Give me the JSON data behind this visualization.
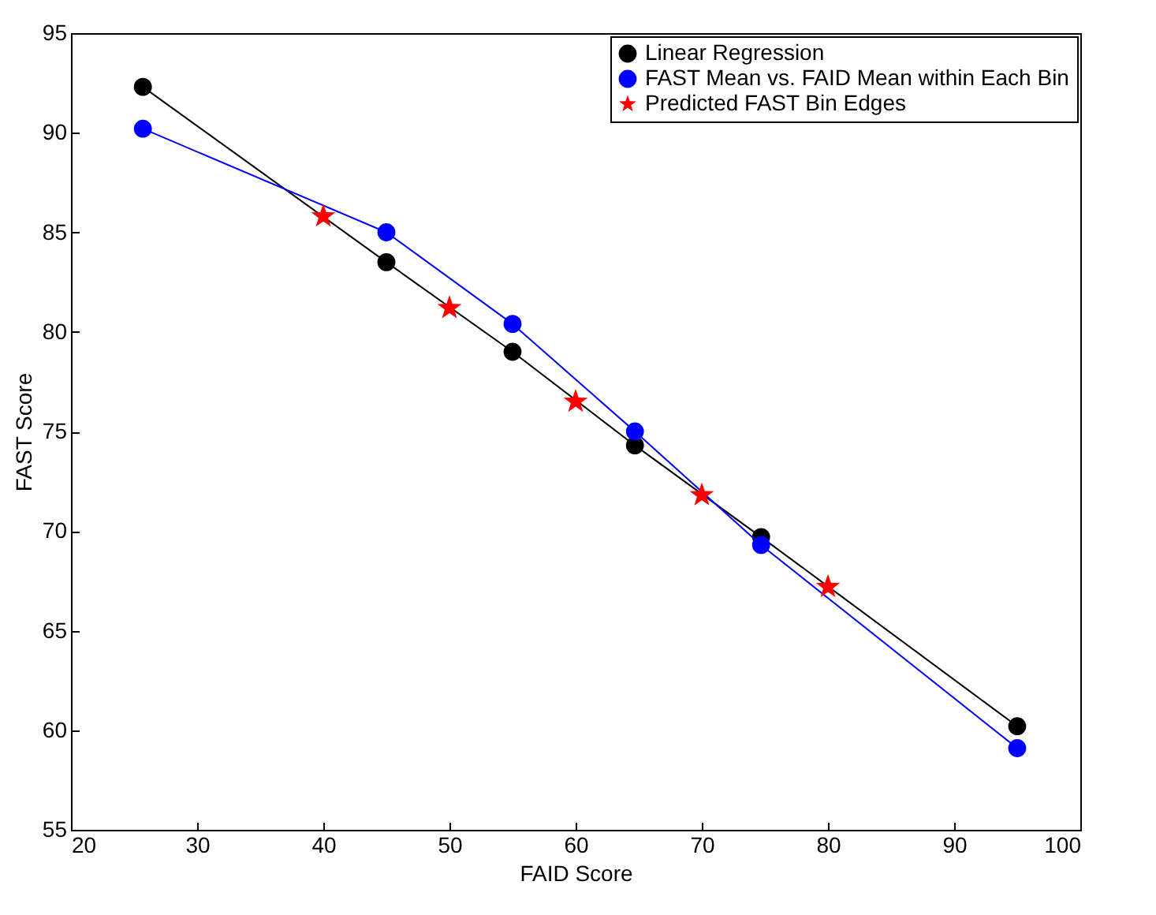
{
  "chart_data": {
    "type": "line",
    "xlabel": "FAID Score",
    "ylabel": "FAST Score",
    "xlim": [
      20,
      100
    ],
    "xticks": [
      20,
      30,
      40,
      50,
      60,
      70,
      80,
      90,
      100
    ],
    "ylim": [
      55,
      95
    ],
    "yticks": [
      55,
      60,
      65,
      70,
      75,
      80,
      85,
      90,
      95
    ],
    "grid": false,
    "legend": "top right",
    "series": [
      {
        "name": "Linear Regression",
        "marker": "circle",
        "color": "#000000",
        "x": [
          25.7,
          45,
          55,
          64.7,
          74.7,
          95
        ],
        "values": [
          92.3,
          83.5,
          79,
          74.3,
          69.7,
          60.2
        ]
      },
      {
        "name": "FAST Mean vs. FAID Mean within Each Bin",
        "marker": "circle",
        "color": "#0000ff",
        "x": [
          25.7,
          45,
          55,
          64.7,
          74.7,
          95
        ],
        "values": [
          90.2,
          85,
          80.4,
          75,
          69.3,
          59.1
        ]
      },
      {
        "name": "Predicted FAST Bin Edges",
        "type": "scatter",
        "marker": "star",
        "color": "#ff0000",
        "x": [
          40,
          50,
          60,
          70,
          80
        ],
        "values": [
          85.8,
          81.2,
          76.5,
          71.8,
          67.2
        ]
      }
    ]
  }
}
